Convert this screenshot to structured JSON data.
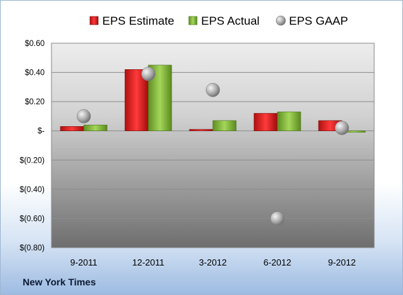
{
  "chart_data": {
    "type": "bar",
    "title": "",
    "xlabel": "",
    "ylabel": "",
    "categories": [
      "9-2011",
      "12-2011",
      "3-2012",
      "6-2012",
      "9-2012"
    ],
    "series": [
      {
        "name": "EPS Estimate",
        "kind": "bar",
        "color": "#e02020",
        "values": [
          0.03,
          0.42,
          0.01,
          0.12,
          0.07
        ]
      },
      {
        "name": "EPS Actual",
        "kind": "bar",
        "color": "#8cbe3c",
        "values": [
          0.04,
          0.45,
          0.07,
          0.13,
          -0.01
        ]
      },
      {
        "name": "EPS GAAP",
        "kind": "scatter",
        "color": "#a8a8a8",
        "values": [
          0.1,
          0.39,
          0.28,
          -0.6,
          0.02
        ]
      }
    ],
    "ylim": [
      -0.8,
      0.6
    ],
    "yticks": [
      0.6,
      0.4,
      0.2,
      0,
      -0.2,
      -0.4,
      -0.6,
      -0.8
    ],
    "ytick_labels": [
      "$0.60",
      "$0.40",
      "$0.20",
      "$-",
      "$(0.20)",
      "$(0.40)",
      "$(0.60)",
      "$(0.80)"
    ],
    "grid": true,
    "legend": "top"
  },
  "footer": {
    "company": "New York Times"
  }
}
